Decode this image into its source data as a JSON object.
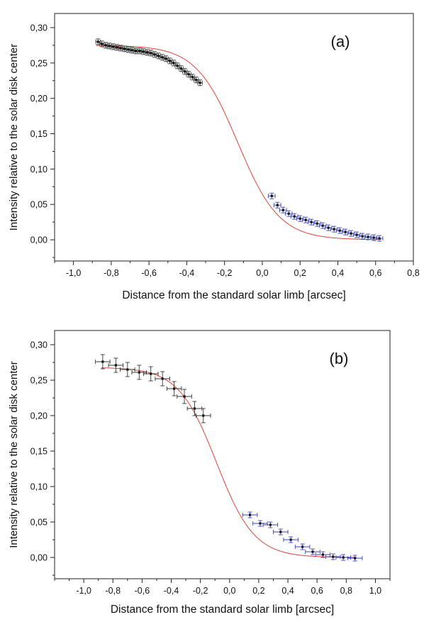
{
  "colors": {
    "fit_curve": "#e0403a",
    "marker": "#111111",
    "error_bar_dark": "#333333",
    "error_bar_blue": "#3a43b5",
    "axis": "#222222"
  },
  "chart_data": [
    {
      "type": "scatter",
      "panel_label": "(a)",
      "xlabel": "Distance from the standard solar limb [arcsec]",
      "ylabel": "Intensity relative to the solar disk center",
      "xlim": [
        -1.1,
        0.8
      ],
      "ylim": [
        -0.03,
        0.32
      ],
      "xticks": [
        -1.0,
        -0.8,
        -0.6,
        -0.4,
        -0.2,
        0.0,
        0.2,
        0.4,
        0.6,
        0.8
      ],
      "xtick_labels": [
        "-1,0",
        "-0,8",
        "-0,6",
        "-0,4",
        "-0,2",
        "0,0",
        "0,2",
        "0,4",
        "0,6",
        "0,8"
      ],
      "yticks": [
        0.0,
        0.05,
        0.1,
        0.15,
        0.2,
        0.25,
        0.3
      ],
      "ytick_labels": [
        "0,00",
        "0,05",
        "0,10",
        "0,15",
        "0,20",
        "0,25",
        "0,30"
      ],
      "grid": false,
      "fit": {
        "type": "line",
        "form": "sigmoid",
        "a": 0.275,
        "b": 0.0,
        "x0": -0.13,
        "w": 0.11
      },
      "series": [
        {
          "x": [
            -0.87,
            -0.85,
            -0.83,
            -0.81,
            -0.79,
            -0.77,
            -0.75,
            -0.73,
            -0.71,
            -0.69,
            -0.67,
            -0.65,
            -0.63,
            -0.61,
            -0.59,
            -0.57,
            -0.55,
            -0.53,
            -0.51,
            -0.49,
            -0.47,
            -0.45,
            -0.43,
            -0.41,
            -0.39,
            -0.37,
            -0.35,
            -0.33
          ],
          "y": [
            0.28,
            0.277,
            0.275,
            0.274,
            0.273,
            0.272,
            0.271,
            0.27,
            0.269,
            0.268,
            0.267,
            0.267,
            0.266,
            0.265,
            0.264,
            0.262,
            0.26,
            0.258,
            0.256,
            0.253,
            0.25,
            0.246,
            0.242,
            0.238,
            0.234,
            0.23,
            0.226,
            0.222
          ],
          "xerr": 0.012,
          "yerr": 0.004
        },
        {
          "x": [
            0.05,
            0.08,
            0.11,
            0.14,
            0.17,
            0.2,
            0.23,
            0.26,
            0.29,
            0.32,
            0.35,
            0.38,
            0.41,
            0.44,
            0.47,
            0.5,
            0.53,
            0.56,
            0.59,
            0.62
          ],
          "y": [
            0.062,
            0.049,
            0.042,
            0.037,
            0.033,
            0.03,
            0.028,
            0.025,
            0.023,
            0.02,
            0.017,
            0.015,
            0.013,
            0.011,
            0.009,
            0.007,
            0.005,
            0.004,
            0.003,
            0.002
          ],
          "xerr": 0.018,
          "yerr": 0.004
        }
      ]
    },
    {
      "type": "scatter",
      "panel_label": "(b)",
      "xlabel": "Distance from the standard solar limb [arcsec]",
      "ylabel": "Intensity relative to the solar disk center",
      "xlim": [
        -1.2,
        1.1
      ],
      "ylim": [
        -0.03,
        0.32
      ],
      "xticks": [
        -1.0,
        -0.8,
        -0.6,
        -0.4,
        -0.2,
        0.0,
        0.2,
        0.4,
        0.6,
        0.8,
        1.0
      ],
      "xtick_labels": [
        "-1,0",
        "-0,8",
        "-0,6",
        "-0,4",
        "-0,2",
        "0,0",
        "0,2",
        "0,4",
        "0,6",
        "0,8",
        "1,0"
      ],
      "yticks": [
        0.0,
        0.05,
        0.1,
        0.15,
        0.2,
        0.25,
        0.3
      ],
      "ytick_labels": [
        "0,00",
        "0,05",
        "0,10",
        "0,15",
        "0,20",
        "0,25",
        "0,30"
      ],
      "grid": false,
      "fit": {
        "type": "line",
        "form": "sigmoid",
        "a": 0.268,
        "b": 0.0,
        "x0": -0.09,
        "w": 0.13
      },
      "series": [
        {
          "x": [
            -0.87,
            -0.78,
            -0.7,
            -0.62,
            -0.54,
            -0.46,
            -0.38,
            -0.31,
            -0.24,
            -0.18
          ],
          "y": [
            0.276,
            0.271,
            0.265,
            0.261,
            0.259,
            0.252,
            0.238,
            0.227,
            0.21,
            0.2
          ],
          "xerr": 0.05,
          "yerr": 0.01
        },
        {
          "x": [
            0.14,
            0.21,
            0.28,
            0.35,
            0.42,
            0.5,
            0.57,
            0.64,
            0.71,
            0.78,
            0.86
          ],
          "y": [
            0.06,
            0.048,
            0.046,
            0.036,
            0.025,
            0.015,
            0.008,
            0.004,
            0.001,
            0.0,
            -0.001
          ],
          "xerr": 0.05,
          "yerr": 0.004
        }
      ]
    }
  ]
}
